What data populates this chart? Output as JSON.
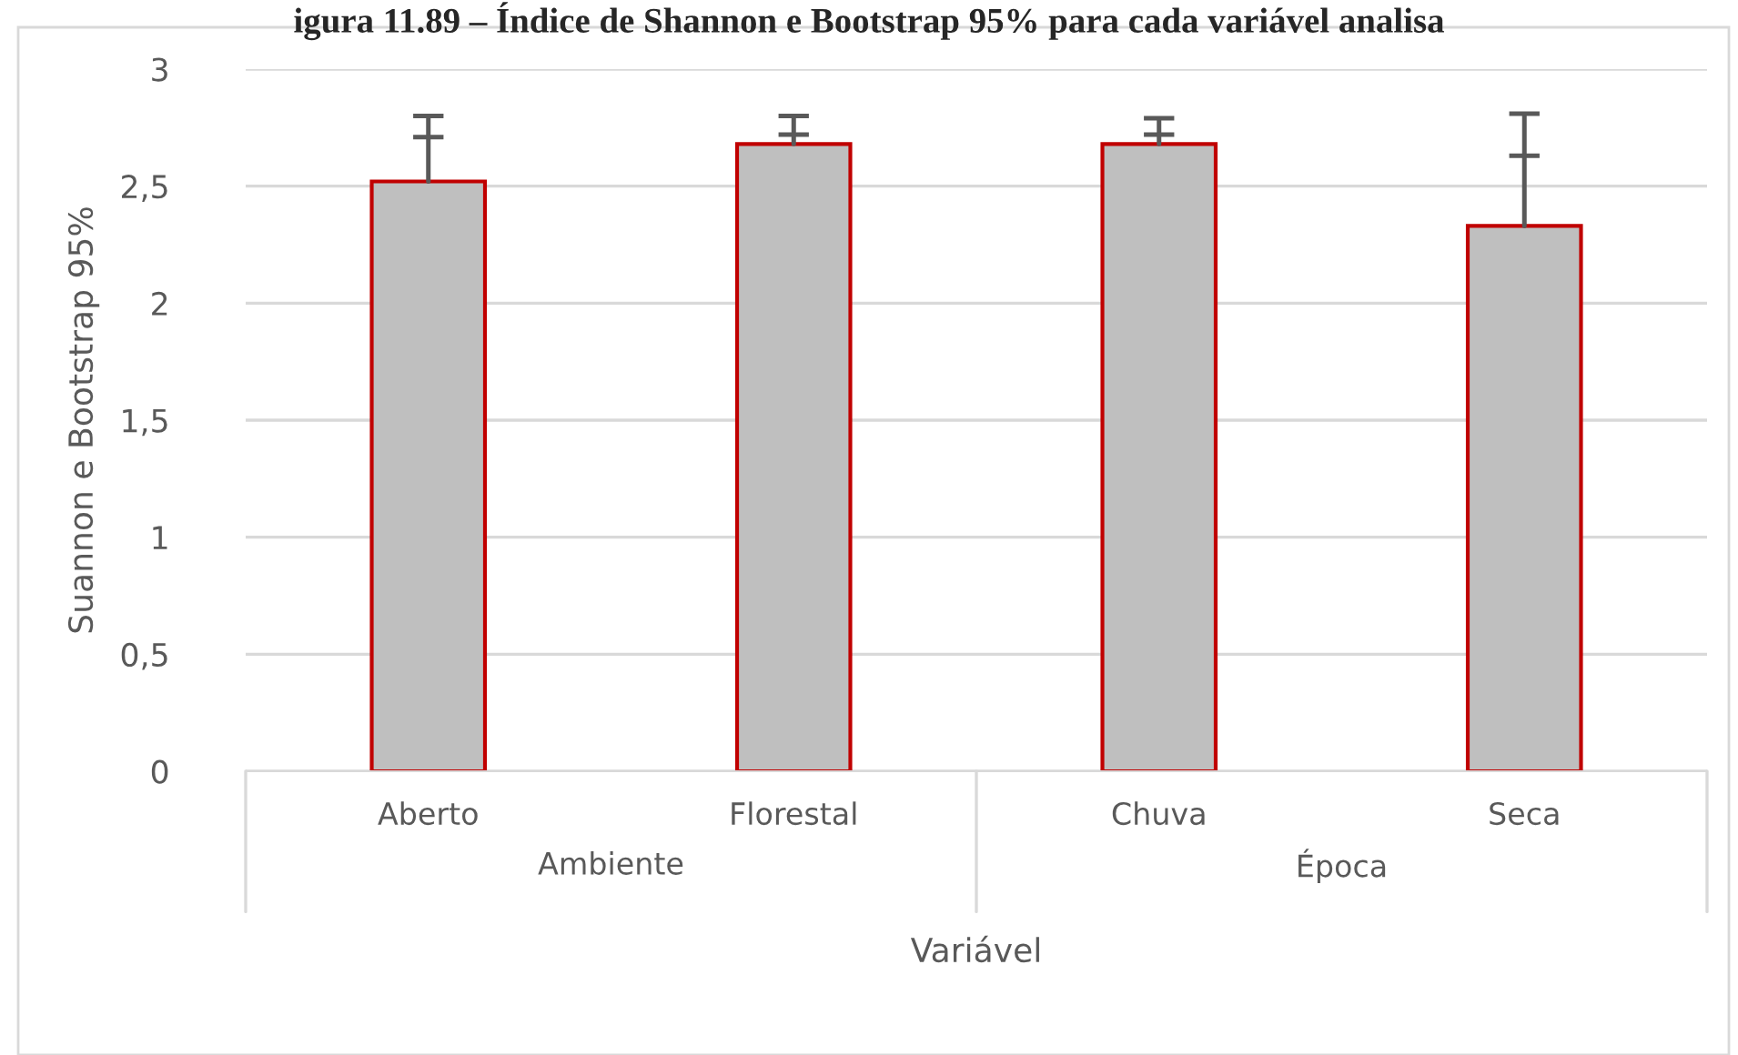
{
  "chart_data": {
    "type": "bar",
    "title": "igura 11.89 – Índice de Shannon e Bootstrap 95% para cada variável analisa",
    "xlabel": "Variável",
    "ylabel": "Suannon e Bootstrap 95%",
    "categories": [
      "Aberto",
      "Florestal",
      "Chuva",
      "Seca"
    ],
    "annotations": [
      "Ambiente",
      "Época"
    ],
    "series": [
      {
        "color": "#bfbfbf",
        "values": [
          2.52,
          2.68,
          2.68,
          2.33
        ],
        "errors": [
          [
            2.71,
            2.8
          ],
          [
            2.72,
            2.8
          ],
          [
            2.72,
            2.79
          ],
          [
            2.63,
            2.81
          ]
        ]
      }
    ],
    "ylim": [
      0,
      3
    ],
    "yticks": [
      0,
      {
        "value": 0.5,
        "label": "0,5"
      },
      1,
      {
        "value": 1.5,
        "label": "1,5"
      },
      2,
      {
        "value": 2.5,
        "label": "2,5"
      },
      3
    ],
    "grid": "y"
  }
}
